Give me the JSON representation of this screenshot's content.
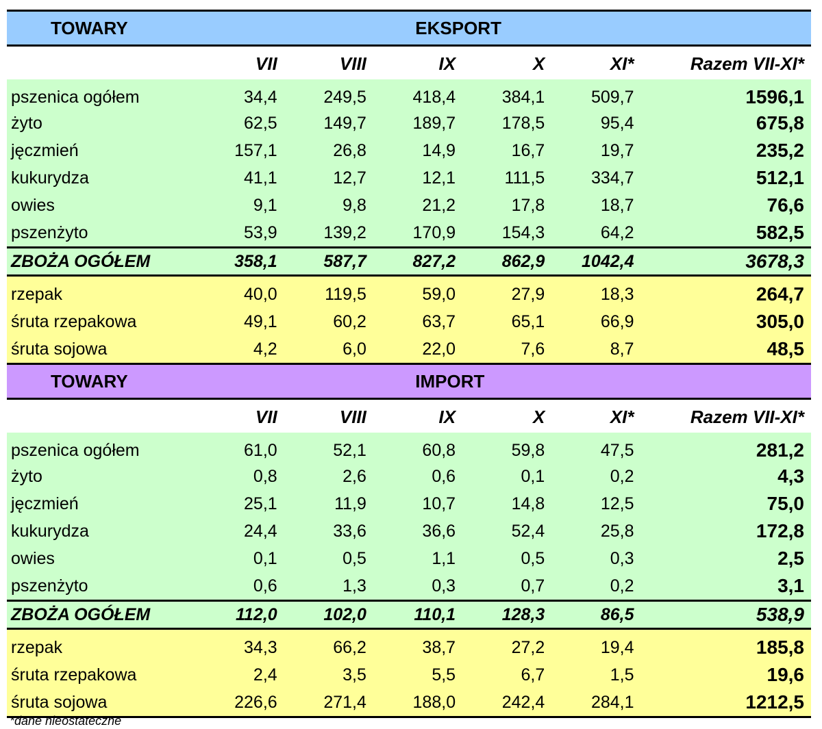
{
  "header_label": "TOWARY",
  "columns": [
    "VII",
    "VIII",
    "IX",
    "X",
    "XI*",
    "Razem VII-XI*"
  ],
  "export": {
    "title": "EKSPORT",
    "grains": [
      {
        "name": "pszenica ogółem",
        "values": [
          "34,4",
          "249,5",
          "418,4",
          "384,1",
          "509,7"
        ],
        "total": "1596,1"
      },
      {
        "name": "żyto",
        "values": [
          "62,5",
          "149,7",
          "189,7",
          "178,5",
          "95,4"
        ],
        "total": "675,8"
      },
      {
        "name": "jęczmień",
        "values": [
          "157,1",
          "26,8",
          "14,9",
          "16,7",
          "19,7"
        ],
        "total": "235,2"
      },
      {
        "name": "kukurydza",
        "values": [
          "41,1",
          "12,7",
          "12,1",
          "111,5",
          "334,7"
        ],
        "total": "512,1"
      },
      {
        "name": "owies",
        "values": [
          "9,1",
          "9,8",
          "21,2",
          "17,8",
          "18,7"
        ],
        "total": "76,6"
      },
      {
        "name": "pszenżyto",
        "values": [
          "53,9",
          "139,2",
          "170,9",
          "154,3",
          "64,2"
        ],
        "total": "582,5"
      }
    ],
    "sum": {
      "name": "ZBOŻA OGÓŁEM",
      "values": [
        "358,1",
        "587,7",
        "827,2",
        "862,9",
        "1042,4"
      ],
      "total": "3678,3"
    },
    "oilseeds": [
      {
        "name": "rzepak",
        "values": [
          "40,0",
          "119,5",
          "59,0",
          "27,9",
          "18,3"
        ],
        "total": "264,7"
      },
      {
        "name": "śruta rzepakowa",
        "values": [
          "49,1",
          "60,2",
          "63,7",
          "65,1",
          "66,9"
        ],
        "total": "305,0"
      },
      {
        "name": "śruta sojowa",
        "values": [
          "4,2",
          "6,0",
          "22,0",
          "7,6",
          "8,7"
        ],
        "total": "48,5"
      }
    ]
  },
  "import": {
    "title": "IMPORT",
    "grains": [
      {
        "name": "pszenica ogółem",
        "values": [
          "61,0",
          "52,1",
          "60,8",
          "59,8",
          "47,5"
        ],
        "total": "281,2"
      },
      {
        "name": "żyto",
        "values": [
          "0,8",
          "2,6",
          "0,6",
          "0,1",
          "0,2"
        ],
        "total": "4,3"
      },
      {
        "name": "jęczmień",
        "values": [
          "25,1",
          "11,9",
          "10,7",
          "14,8",
          "12,5"
        ],
        "total": "75,0"
      },
      {
        "name": "kukurydza",
        "values": [
          "24,4",
          "33,6",
          "36,6",
          "52,4",
          "25,8"
        ],
        "total": "172,8"
      },
      {
        "name": "owies",
        "values": [
          "0,1",
          "0,5",
          "1,1",
          "0,5",
          "0,3"
        ],
        "total": "2,5"
      },
      {
        "name": "pszenżyto",
        "values": [
          "0,6",
          "1,3",
          "0,3",
          "0,7",
          "0,2"
        ],
        "total": "3,1"
      }
    ],
    "sum": {
      "name": "ZBOŻA OGÓŁEM",
      "values": [
        "112,0",
        "102,0",
        "110,1",
        "128,3",
        "86,5"
      ],
      "total": "538,9"
    },
    "oilseeds": [
      {
        "name": "rzepak",
        "values": [
          "34,3",
          "66,2",
          "38,7",
          "27,2",
          "19,4"
        ],
        "total": "185,8"
      },
      {
        "name": "śruta rzepakowa",
        "values": [
          "2,4",
          "3,5",
          "5,5",
          "6,7",
          "1,5"
        ],
        "total": "19,6"
      },
      {
        "name": "śruta sojowa",
        "values": [
          "226,6",
          "271,4",
          "188,0",
          "242,4",
          "284,1"
        ],
        "total": "1212,5"
      }
    ]
  },
  "footnote": "*dane nieostateczne",
  "colors": {
    "export_header": "#99ccff",
    "import_header": "#cc99ff",
    "grains_bg": "#ccffcc",
    "oilseeds_bg": "#ffff99"
  }
}
